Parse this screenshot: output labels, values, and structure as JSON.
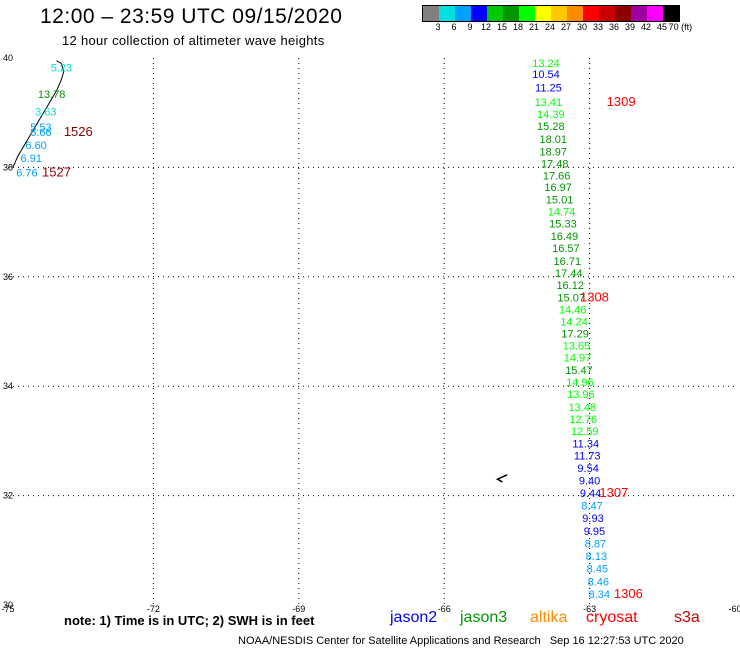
{
  "header": {
    "title": "12:00 – 23:59 UTC 09/15/2020",
    "subtitle": "12 hour collection of altimeter wave heights"
  },
  "legend": {
    "colors": [
      "#808080",
      "#00e0e0",
      "#00a0ff",
      "#0000ff",
      "#00c800",
      "#009600",
      "#00ff00",
      "#ffff00",
      "#ffc800",
      "#ff8c00",
      "#ff0000",
      "#c80000",
      "#8c0000",
      "#a000a0",
      "#ff00ff",
      "#000000"
    ],
    "labels": [
      "3",
      "6",
      "9",
      "12",
      "15",
      "18",
      "21",
      "24",
      "27",
      "30",
      "33",
      "36",
      "39",
      "42",
      "45",
      "70 (ft)"
    ]
  },
  "note": "note: 1) Time is in UTC; 2) SWH is in feet",
  "satellites": [
    {
      "name": "jason2",
      "color": "#0000ff"
    },
    {
      "name": "jason3",
      "color": "#009600"
    },
    {
      "name": "altika",
      "color": "#ff8c00"
    },
    {
      "name": "cryosat",
      "color": "#ff0000"
    },
    {
      "name": "s3a",
      "color": "#c80000"
    }
  ],
  "footer": "NOAA/NESDIS Center for Satellite Applications and Research   Sep 16 12:27:53 UTC 2020",
  "chart_data": {
    "type": "scatter",
    "title": "12:00 – 23:59 UTC 09/15/2020",
    "subtitle": "12 hour collection of altimeter wave heights",
    "xlabel": "",
    "ylabel": "",
    "xlim": [
      -75,
      -60
    ],
    "ylim": [
      30,
      40
    ],
    "xticks": [
      -75,
      -72,
      -69,
      -66,
      -63,
      -60
    ],
    "yticks": [
      30,
      32,
      34,
      36,
      38,
      40
    ],
    "xtick_labels": [
      "-75",
      "-72",
      "-69",
      "-66",
      "-63",
      "-60"
    ],
    "ytick_labels": [
      "30",
      "32",
      "34",
      "36",
      "38",
      "40"
    ],
    "grid": true,
    "value_unit": "ft",
    "coast": [
      [
        -74.9,
        38.0
      ],
      [
        -74.8,
        38.2
      ],
      [
        -74.6,
        38.5
      ],
      [
        -74.4,
        38.8
      ],
      [
        -74.2,
        39.1
      ],
      [
        -74.0,
        39.4
      ],
      [
        -73.9,
        39.6
      ],
      [
        -73.85,
        39.75
      ],
      [
        -73.9,
        39.9
      ],
      [
        -74.0,
        39.95
      ]
    ],
    "coast_small": [
      [
        -64.8,
        32.25
      ],
      [
        -64.9,
        32.3
      ],
      [
        -64.7,
        32.38
      ]
    ],
    "points": [
      {
        "lon": -73.9,
        "lat": 39.75,
        "value": "5.23",
        "color": "#00e0e0"
      },
      {
        "lon": -74.1,
        "lat": 39.27,
        "value": "13.78",
        "color": "#009600"
      },
      {
        "lon": -74.22,
        "lat": 38.95,
        "value": "3.63",
        "color": "#00e0e0"
      },
      {
        "lon": -74.32,
        "lat": 38.67,
        "value": "5.53",
        "color": "#00a0ff"
      },
      {
        "lon": -74.32,
        "lat": 38.57,
        "value": "6.66",
        "color": "#00a0ff"
      },
      {
        "lon": -74.42,
        "lat": 38.34,
        "value": "6.60",
        "color": "#00a0ff"
      },
      {
        "lon": -74.52,
        "lat": 38.1,
        "value": "6.91",
        "color": "#00a0ff"
      },
      {
        "lon": -74.61,
        "lat": 37.83,
        "value": "6.76",
        "color": "#00a0ff"
      },
      {
        "lon": -63.9,
        "lat": 39.84,
        "value": "13.24",
        "color": "#00ff00"
      },
      {
        "lon": -63.9,
        "lat": 39.63,
        "value": "10.54",
        "color": "#0000ff"
      },
      {
        "lon": -63.85,
        "lat": 39.39,
        "value": "11.25",
        "color": "#0000ff"
      },
      {
        "lon": -63.85,
        "lat": 39.12,
        "value": "13.41",
        "color": "#00ff00"
      },
      {
        "lon": -63.8,
        "lat": 38.9,
        "value": "14.39",
        "color": "#00ff00"
      },
      {
        "lon": -63.8,
        "lat": 38.68,
        "value": "15.28",
        "color": "#009600"
      },
      {
        "lon": -63.75,
        "lat": 38.45,
        "value": "18.01",
        "color": "#009600"
      },
      {
        "lon": -63.75,
        "lat": 38.22,
        "value": "18.97",
        "color": "#009600"
      },
      {
        "lon": -63.72,
        "lat": 38.0,
        "value": "17.48",
        "color": "#009600"
      },
      {
        "lon": -63.68,
        "lat": 37.78,
        "value": "17.66",
        "color": "#009600"
      },
      {
        "lon": -63.65,
        "lat": 37.57,
        "value": "16.97",
        "color": "#009600"
      },
      {
        "lon": -63.62,
        "lat": 37.34,
        "value": "15.01",
        "color": "#009600"
      },
      {
        "lon": -63.58,
        "lat": 37.12,
        "value": "14.74",
        "color": "#00ff00"
      },
      {
        "lon": -63.55,
        "lat": 36.9,
        "value": "15.33",
        "color": "#009600"
      },
      {
        "lon": -63.52,
        "lat": 36.67,
        "value": "16.49",
        "color": "#009600"
      },
      {
        "lon": -63.49,
        "lat": 36.45,
        "value": "16.57",
        "color": "#009600"
      },
      {
        "lon": -63.46,
        "lat": 36.22,
        "value": "16.71",
        "color": "#009600"
      },
      {
        "lon": -63.43,
        "lat": 36.0,
        "value": "17.44",
        "color": "#009600"
      },
      {
        "lon": -63.4,
        "lat": 35.78,
        "value": "16.12",
        "color": "#009600"
      },
      {
        "lon": -63.38,
        "lat": 35.55,
        "value": "15.07",
        "color": "#009600"
      },
      {
        "lon": -63.35,
        "lat": 35.33,
        "value": "14.46",
        "color": "#00ff00"
      },
      {
        "lon": -63.32,
        "lat": 35.11,
        "value": "14.24",
        "color": "#00ff00"
      },
      {
        "lon": -63.3,
        "lat": 34.89,
        "value": "17.29",
        "color": "#009600"
      },
      {
        "lon": -63.27,
        "lat": 34.67,
        "value": "13.65",
        "color": "#00ff00"
      },
      {
        "lon": -63.25,
        "lat": 34.45,
        "value": "14.97",
        "color": "#00ff00"
      },
      {
        "lon": -63.22,
        "lat": 34.22,
        "value": "15.47",
        "color": "#009600"
      },
      {
        "lon": -63.2,
        "lat": 34.0,
        "value": "14.96",
        "color": "#00ff00"
      },
      {
        "lon": -63.18,
        "lat": 33.78,
        "value": "13.96",
        "color": "#00ff00"
      },
      {
        "lon": -63.15,
        "lat": 33.55,
        "value": "13.48",
        "color": "#00ff00"
      },
      {
        "lon": -63.13,
        "lat": 33.33,
        "value": "12.76",
        "color": "#00ff00"
      },
      {
        "lon": -63.1,
        "lat": 33.11,
        "value": "12.59",
        "color": "#00ff00"
      },
      {
        "lon": -63.08,
        "lat": 32.88,
        "value": "11.34",
        "color": "#0000ff"
      },
      {
        "lon": -63.05,
        "lat": 32.66,
        "value": "11.73",
        "color": "#0000ff"
      },
      {
        "lon": -63.03,
        "lat": 32.43,
        "value": "9.54",
        "color": "#0000ff"
      },
      {
        "lon": -63.0,
        "lat": 32.2,
        "value": "9.40",
        "color": "#0000ff"
      },
      {
        "lon": -62.98,
        "lat": 31.97,
        "value": "9.44",
        "color": "#0000ff"
      },
      {
        "lon": -62.95,
        "lat": 31.75,
        "value": "8.47",
        "color": "#00a0ff"
      },
      {
        "lon": -62.93,
        "lat": 31.52,
        "value": "9.93",
        "color": "#0000ff"
      },
      {
        "lon": -62.9,
        "lat": 31.28,
        "value": "9.95",
        "color": "#0000ff"
      },
      {
        "lon": -62.88,
        "lat": 31.05,
        "value": "8.87",
        "color": "#00a0ff"
      },
      {
        "lon": -62.86,
        "lat": 30.82,
        "value": "8.13",
        "color": "#00a0ff"
      },
      {
        "lon": -62.84,
        "lat": 30.59,
        "value": "8.45",
        "color": "#00a0ff"
      },
      {
        "lon": -62.82,
        "lat": 30.36,
        "value": "8.46",
        "color": "#00a0ff"
      },
      {
        "lon": -62.8,
        "lat": 30.13,
        "value": "8.34",
        "color": "#00a0ff"
      }
    ],
    "time_labels": [
      {
        "lon": -73.55,
        "lat": 38.57,
        "text": "1526",
        "color": "#8c0000"
      },
      {
        "lon": -74.0,
        "lat": 37.83,
        "text": "1527",
        "color": "#8c0000"
      },
      {
        "lon": -62.35,
        "lat": 39.12,
        "text": "1309",
        "color": "#ff0000"
      },
      {
        "lon": -62.9,
        "lat": 35.55,
        "text": "1308",
        "color": "#ff0000"
      },
      {
        "lon": -62.5,
        "lat": 31.97,
        "text": "1307",
        "color": "#ff0000"
      },
      {
        "lon": -62.2,
        "lat": 30.13,
        "text": "1306",
        "color": "#ff0000"
      }
    ]
  }
}
